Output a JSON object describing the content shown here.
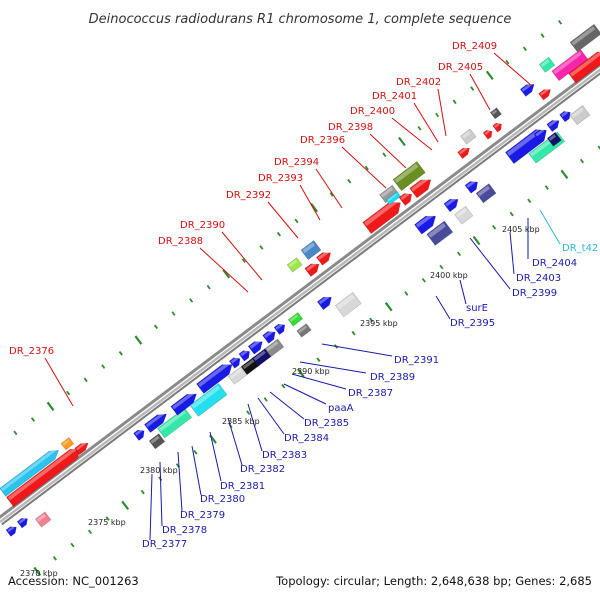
{
  "title": "Deinococcus radiodurans R1 chromosome 1, complete sequence",
  "accession": "Accession: NC_001263",
  "summary": "Topology: circular; Length: 2,648,638 bp; Genes: 2,685",
  "colors": {
    "top_label": "#d01010",
    "bottom_label": "#1a1aa8",
    "rna_label": "#2ab8d8"
  },
  "scale_ticks": [
    {
      "label": "2370 kbp"
    },
    {
      "label": "2375 kbp"
    },
    {
      "label": "2380 kbp"
    },
    {
      "label": "2385 kbp"
    },
    {
      "label": "2390 kbp"
    },
    {
      "label": "2395 kbp"
    },
    {
      "label": "2400 kbp"
    },
    {
      "label": "2405 kbp"
    }
  ],
  "top_labels": [
    {
      "text": "DR_2376"
    },
    {
      "text": "DR_2388"
    },
    {
      "text": "DR_2390"
    },
    {
      "text": "DR_2392"
    },
    {
      "text": "DR_2393"
    },
    {
      "text": "DR_2394"
    },
    {
      "text": "DR_2396"
    },
    {
      "text": "DR_2398"
    },
    {
      "text": "DR_2400"
    },
    {
      "text": "DR_2401"
    },
    {
      "text": "DR_2402"
    },
    {
      "text": "DR_2405"
    },
    {
      "text": "DR_2409"
    }
  ],
  "bottom_labels": [
    {
      "text": "DR_2377"
    },
    {
      "text": "DR_2378"
    },
    {
      "text": "DR_2379"
    },
    {
      "text": "DR_2380"
    },
    {
      "text": "DR_2381"
    },
    {
      "text": "DR_2382"
    },
    {
      "text": "DR_2383"
    },
    {
      "text": "DR_2384"
    },
    {
      "text": "DR_2385"
    },
    {
      "text": "paaA"
    },
    {
      "text": "DR_2387"
    },
    {
      "text": "DR_2389"
    },
    {
      "text": "DR_2391"
    },
    {
      "text": "DR_2395"
    },
    {
      "text": "surE"
    },
    {
      "text": "DR_2399"
    },
    {
      "text": "DR_2403"
    },
    {
      "text": "DR_2404"
    },
    {
      "text": "DR_t42"
    }
  ]
}
